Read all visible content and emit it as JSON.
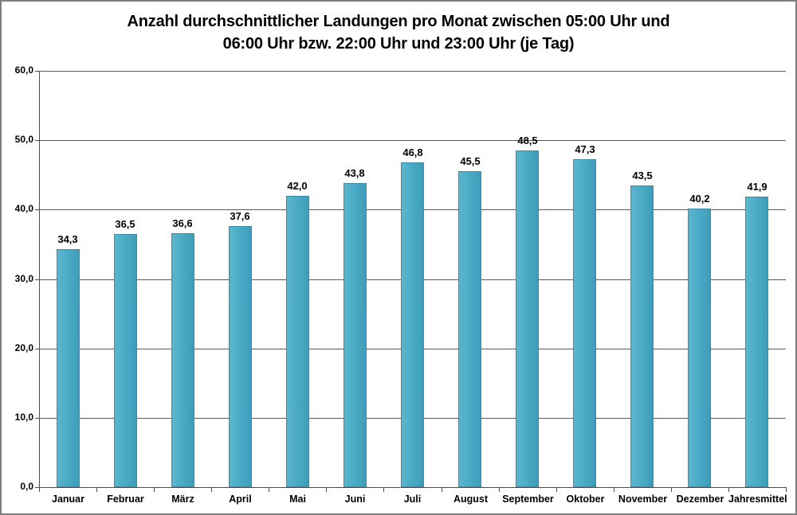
{
  "frame": {
    "border_color": "#7f7f7f",
    "background_color": "#ffffff"
  },
  "title": {
    "line1": "Anzahl durchschnittlicher Landungen pro Monat zwischen 05:00 Uhr und",
    "line2": "06:00 Uhr bzw. 22:00 Uhr und 23:00 Uhr (je Tag)"
  },
  "chart_data": {
    "type": "bar",
    "title": "Anzahl durchschnittlicher Landungen pro Monat zwischen 05:00 Uhr und 06:00 Uhr bzw. 22:00 Uhr und 23:00 Uhr (je Tag)",
    "categories": [
      "Januar",
      "Februar",
      "März",
      "April",
      "Mai",
      "Juni",
      "Juli",
      "August",
      "September",
      "Oktober",
      "November",
      "Dezember",
      "Jahresmittel"
    ],
    "values": [
      34.3,
      36.5,
      36.6,
      37.6,
      42.0,
      43.8,
      46.8,
      45.5,
      48.5,
      47.3,
      43.5,
      40.2,
      41.9
    ],
    "value_labels": [
      "34,3",
      "36,5",
      "36,6",
      "37,6",
      "42,0",
      "43,8",
      "46,8",
      "45,5",
      "48,5",
      "47,3",
      "43,5",
      "40,2",
      "41,9"
    ],
    "xlabel": "",
    "ylabel": "",
    "ylim": [
      0,
      60
    ],
    "y_ticks": [
      0,
      10,
      20,
      30,
      40,
      50,
      60
    ],
    "y_tick_labels": [
      "0,0",
      "10,0",
      "20,0",
      "30,0",
      "40,0",
      "50,0",
      "60,0"
    ],
    "grid": true,
    "legend_position": "none",
    "decimal_separator": ",",
    "colors": {
      "bar_fill": "#4bacc6",
      "bar_fill_light": "#5cb6cd",
      "bar_fill_dark": "#3f9cb8",
      "bar_border": "#3a8dab",
      "gridline": "#595959",
      "axis": "#4d4d4d",
      "text": "#000000"
    }
  }
}
